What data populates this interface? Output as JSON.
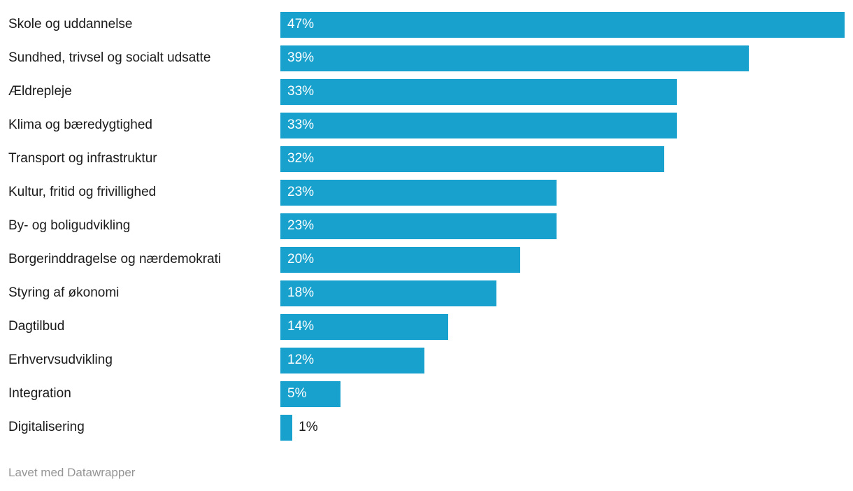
{
  "chart_data": {
    "type": "bar",
    "orientation": "horizontal",
    "title": "",
    "xlabel": "",
    "ylabel": "",
    "grid": false,
    "legend": false,
    "xlim": [
      0,
      47
    ],
    "bar_color": "#18a1cd",
    "value_suffix": "%",
    "categories": [
      "Skole og uddannelse",
      "Sundhed, trivsel og socialt udsatte",
      "Ældrepleje",
      "Klima og bæredygtighed",
      "Transport og infrastruktur",
      "Kultur, fritid og frivillighed",
      "By- og boligudvikling",
      "Borgerinddragelse og nærdemokrati",
      "Styring af økonomi",
      "Dagtilbud",
      "Erhvervsudvikling",
      "Integration",
      "Digitalisering"
    ],
    "values": [
      47,
      39,
      33,
      33,
      32,
      23,
      23,
      20,
      18,
      14,
      12,
      5,
      1
    ],
    "value_labels": [
      "47%",
      "39%",
      "33%",
      "33%",
      "32%",
      "23%",
      "23%",
      "20%",
      "18%",
      "14%",
      "12%",
      "5%",
      "1%"
    ]
  },
  "footer": {
    "credit": "Lavet med Datawrapper"
  }
}
